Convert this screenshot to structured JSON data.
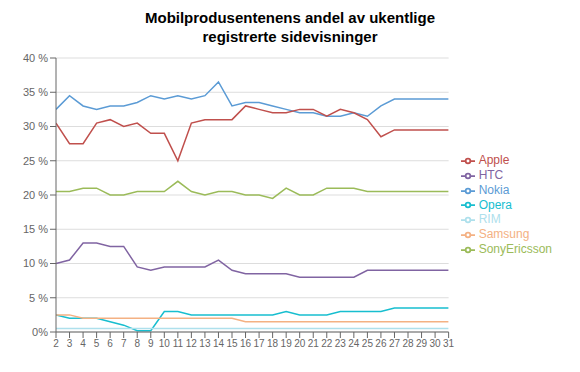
{
  "chart_data": {
    "type": "line",
    "title": "Mobilprodusentenens andel av ukentlige\nregistrerte sidevisninger",
    "x": [
      2,
      3,
      4,
      5,
      6,
      7,
      8,
      9,
      10,
      11,
      12,
      13,
      14,
      15,
      16,
      17,
      18,
      19,
      20,
      21,
      22,
      23,
      24,
      25,
      26,
      27,
      28,
      29,
      30,
      31
    ],
    "series": [
      {
        "name": "Nokia",
        "color": "#5B9BD5",
        "values": [
          32.5,
          34.5,
          33.0,
          32.5,
          33.0,
          33.0,
          33.5,
          34.5,
          34.0,
          34.5,
          34.0,
          34.5,
          36.5,
          33.0,
          33.5,
          33.5,
          33.0,
          32.5,
          32.0,
          32.0,
          31.5,
          31.5,
          32.0,
          31.5,
          33.0,
          34.0,
          34.0,
          34.0,
          34.0,
          34.0
        ]
      },
      {
        "name": "Apple",
        "color": "#C0504D",
        "values": [
          30.5,
          27.5,
          27.5,
          30.5,
          31.0,
          30.0,
          30.5,
          29.0,
          29.0,
          25.0,
          30.5,
          31.0,
          31.0,
          31.0,
          33.0,
          32.5,
          32.0,
          32.0,
          32.5,
          32.5,
          31.5,
          32.5,
          32.0,
          31.0,
          28.5,
          29.5,
          29.5,
          29.5,
          29.5,
          29.5
        ]
      },
      {
        "name": "SonyEricsson",
        "color": "#9BBB59",
        "values": [
          20.5,
          20.5,
          21.0,
          21.0,
          20.0,
          20.0,
          20.5,
          20.5,
          20.5,
          22.0,
          20.5,
          20.0,
          20.5,
          20.5,
          20.0,
          20.0,
          19.5,
          21.0,
          20.0,
          20.0,
          21.0,
          21.0,
          21.0,
          20.5,
          20.5,
          20.5,
          20.5,
          20.5,
          20.5,
          20.5
        ]
      },
      {
        "name": "HTC",
        "color": "#8064A2",
        "values": [
          10.0,
          10.5,
          13.0,
          13.0,
          12.5,
          12.5,
          9.5,
          9.0,
          9.5,
          9.5,
          9.5,
          9.5,
          10.5,
          9.0,
          8.5,
          8.5,
          8.5,
          8.5,
          8.0,
          8.0,
          8.0,
          8.0,
          8.0,
          9.0,
          9.0,
          9.0,
          9.0,
          9.0,
          9.0,
          9.0
        ]
      },
      {
        "name": "Opera",
        "color": "#17BECF",
        "values": [
          2.5,
          2.0,
          2.0,
          2.0,
          1.5,
          1.0,
          0.2,
          0.2,
          3.0,
          3.0,
          2.5,
          2.5,
          2.5,
          2.5,
          2.5,
          2.5,
          2.5,
          3.0,
          2.5,
          2.5,
          2.5,
          3.0,
          3.0,
          3.0,
          3.0,
          3.5,
          3.5,
          3.5,
          3.5,
          3.5
        ]
      },
      {
        "name": "Samsung",
        "color": "#F4B183",
        "values": [
          2.5,
          2.5,
          2.0,
          2.0,
          2.0,
          2.0,
          2.0,
          2.0,
          2.0,
          2.0,
          2.0,
          2.0,
          2.0,
          2.0,
          1.5,
          1.5,
          1.5,
          1.5,
          1.5,
          1.5,
          1.5,
          1.5,
          1.5,
          1.5,
          1.5,
          1.5,
          1.5,
          1.5,
          1.5,
          1.5
        ]
      },
      {
        "name": "RIM",
        "color": "#AEE0EC",
        "values": [
          0.5,
          0.5,
          0.5,
          0.5,
          0.5,
          0.5,
          0.5,
          0.5,
          0.5,
          0.5,
          0.5,
          0.5,
          0.5,
          0.5,
          0.5,
          0.5,
          0.5,
          0.5,
          0.5,
          0.5,
          0.5,
          0.5,
          0.5,
          0.5,
          0.5,
          0.5,
          0.5,
          0.5,
          0.5,
          0.5
        ]
      }
    ],
    "xlim": [
      2,
      31
    ],
    "ylim": [
      0,
      40
    ],
    "xticks": [
      2,
      3,
      4,
      5,
      6,
      7,
      8,
      9,
      10,
      11,
      12,
      13,
      14,
      15,
      16,
      17,
      18,
      19,
      20,
      21,
      22,
      23,
      24,
      25,
      26,
      27,
      28,
      29,
      30,
      31
    ],
    "yticks": [
      {
        "value": 0,
        "label": "0%"
      },
      {
        "value": 5,
        "label": "5 %"
      },
      {
        "value": 10,
        "label": "10 %"
      },
      {
        "value": 15,
        "label": "15 %"
      },
      {
        "value": 20,
        "label": "20 %"
      },
      {
        "value": 25,
        "label": "25 %"
      },
      {
        "value": 30,
        "label": "30 %"
      },
      {
        "value": 35,
        "label": "35 %"
      },
      {
        "value": 40,
        "label": "40 %"
      }
    ],
    "grid": "y",
    "legend": "right"
  }
}
